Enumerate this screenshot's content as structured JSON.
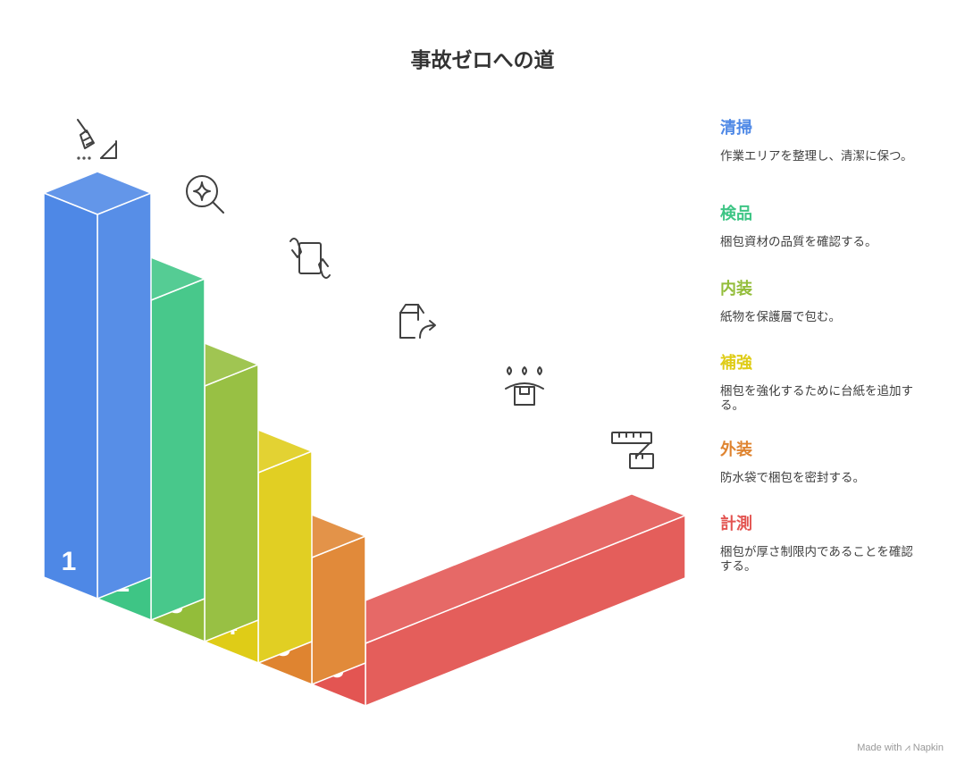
{
  "title": "事故ゼロへの道",
  "steps": [
    {
      "number": "1",
      "title": "清掃",
      "description": "作業エリアを整理し、清潔に保つ。",
      "color": "#4E88E6",
      "icon": "broom-icon"
    },
    {
      "number": "2",
      "title": "検品",
      "description": "梱包資材の品質を確認する。",
      "color": "#3EC585",
      "icon": "magnifier-sparkle-icon"
    },
    {
      "number": "3",
      "title": "内装",
      "description": "紙物を保護層で包む。",
      "color": "#93BD3A",
      "icon": "hands-paper-icon"
    },
    {
      "number": "4",
      "title": "補強",
      "description": "梱包を強化するために台紙を追加する。",
      "color": "#DFCC17",
      "icon": "box-arrow-icon"
    },
    {
      "number": "5",
      "title": "外装",
      "description": "防水袋で梱包を密封する。",
      "color": "#DF8430",
      "icon": "waterproof-box-icon"
    },
    {
      "number": "6",
      "title": "計測",
      "description": "梱包が厚さ制限内であることを確認する。",
      "color": "#E35552",
      "icon": "ruler-icon"
    }
  ],
  "footer": {
    "prefix": "Made with",
    "brand": "Napkin"
  }
}
